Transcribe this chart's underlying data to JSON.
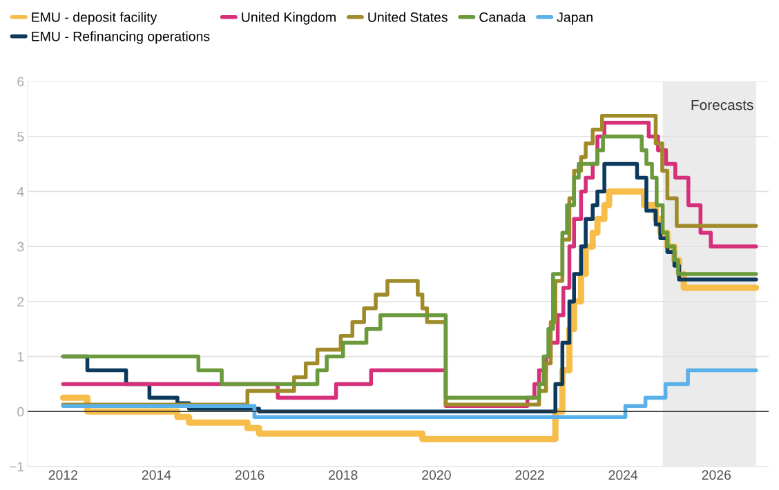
{
  "chart_data": {
    "type": "step",
    "xlim": [
      2011.24,
      2027.12
    ],
    "xticks": [
      2012,
      2014,
      2016,
      2018,
      2020,
      2022,
      2024,
      2026
    ],
    "ylim": [
      -1,
      6
    ],
    "yticks": [
      {
        "value": -1,
        "label": "−1"
      },
      0,
      1,
      2,
      3,
      4,
      5,
      6
    ],
    "grid": "y",
    "legend": "top",
    "line_style": "solid",
    "marker": "none",
    "ref_lines": [
      {
        "axis": "y",
        "value": 0,
        "color": "#333333"
      }
    ],
    "bands": [
      {
        "axis": "x",
        "from": 2024.85,
        "to": 2026.85,
        "label": "Forecasts",
        "color": "#ebebeb"
      }
    ],
    "series": [
      {
        "name": "EMU - deposit facility",
        "color": "#f6bd4a",
        "x": [
          2012.0,
          2012.52,
          2014.45,
          2014.7,
          2015.95,
          2016.2,
          2019.7,
          2022.55,
          2022.7,
          2022.85,
          2022.95,
          2023.1,
          2023.2,
          2023.35,
          2023.45,
          2023.6,
          2023.7,
          2024.45,
          2024.7,
          2024.8,
          2024.95,
          2025.1,
          2025.2,
          2025.3,
          2026.85
        ],
        "values": [
          0.25,
          0,
          -0.1,
          -0.2,
          -0.3,
          -0.4,
          -0.5,
          0,
          0.75,
          1.5,
          2.0,
          2.5,
          3.0,
          3.25,
          3.5,
          3.75,
          4.0,
          3.75,
          3.5,
          3.25,
          3.0,
          2.75,
          2.5,
          2.25,
          2.25
        ]
      },
      {
        "name": "EMU - Refinancing operations",
        "color": "#0d3a5c",
        "x": [
          2012.0,
          2012.52,
          2013.35,
          2013.85,
          2014.45,
          2014.7,
          2016.2,
          2022.55,
          2022.7,
          2022.85,
          2022.95,
          2023.1,
          2023.2,
          2023.35,
          2023.45,
          2023.6,
          2024.3,
          2024.5,
          2024.7,
          2024.8,
          2024.95,
          2025.1,
          2025.2,
          2026.85
        ],
        "values": [
          1.0,
          0.75,
          0.5,
          0.25,
          0.15,
          0.05,
          0,
          0.5,
          1.25,
          2.0,
          2.5,
          3.0,
          3.5,
          3.75,
          4.0,
          4.5,
          4.25,
          3.65,
          3.4,
          3.15,
          2.9,
          2.65,
          2.4,
          2.4
        ]
      },
      {
        "name": "United Kingdom",
        "color": "#d6307a",
        "x": [
          2012.0,
          2016.6,
          2017.85,
          2018.6,
          2020.2,
          2021.95,
          2022.1,
          2022.2,
          2022.35,
          2022.45,
          2022.6,
          2022.72,
          2022.85,
          2022.95,
          2023.1,
          2023.2,
          2023.35,
          2023.45,
          2023.6,
          2024.55,
          2024.75,
          2024.92,
          2025.12,
          2025.4,
          2025.66,
          2025.88,
          2026.85
        ],
        "values": [
          0.5,
          0.25,
          0.5,
          0.75,
          0.1,
          0.25,
          0.5,
          0.75,
          1.0,
          1.25,
          1.75,
          2.25,
          3.0,
          3.5,
          4.0,
          4.25,
          4.5,
          5.0,
          5.25,
          5.0,
          4.75,
          4.5,
          4.25,
          3.75,
          3.25,
          3.0,
          3.0
        ]
      },
      {
        "name": "United States",
        "color": "#a08b2b",
        "x": [
          2012.0,
          2015.95,
          2016.95,
          2017.2,
          2017.45,
          2017.95,
          2018.2,
          2018.45,
          2018.7,
          2018.95,
          2019.6,
          2019.7,
          2019.8,
          2020.2,
          2022.2,
          2022.35,
          2022.45,
          2022.55,
          2022.7,
          2022.85,
          2022.95,
          2023.1,
          2023.2,
          2023.35,
          2023.55,
          2024.7,
          2024.84,
          2024.95,
          2025.15,
          2026.85
        ],
        "values": [
          0.125,
          0.375,
          0.625,
          0.875,
          1.125,
          1.375,
          1.625,
          1.875,
          2.125,
          2.375,
          2.125,
          1.875,
          1.625,
          0.125,
          0.375,
          0.875,
          1.625,
          2.375,
          3.125,
          3.875,
          4.375,
          4.625,
          4.875,
          5.125,
          5.375,
          4.875,
          4.375,
          3.875,
          3.375,
          3.375
        ]
      },
      {
        "name": "Canada",
        "color": "#6a9a3b",
        "x": [
          2012.0,
          2014.9,
          2015.4,
          2017.45,
          2017.65,
          2018.0,
          2018.5,
          2018.8,
          2020.2,
          2022.2,
          2022.3,
          2022.4,
          2022.5,
          2022.7,
          2022.8,
          2022.95,
          2023.05,
          2023.45,
          2023.57,
          2024.4,
          2024.5,
          2024.62,
          2024.72,
          2024.85,
          2024.95,
          2025.1,
          2025.18,
          2026.85
        ],
        "values": [
          1.0,
          0.75,
          0.5,
          0.75,
          1.0,
          1.25,
          1.5,
          1.75,
          0.25,
          0.5,
          1.0,
          1.5,
          2.5,
          3.25,
          3.75,
          4.25,
          4.5,
          4.75,
          5.0,
          4.75,
          4.5,
          4.25,
          3.75,
          3.25,
          3.0,
          2.75,
          2.5,
          2.5
        ]
      },
      {
        "name": "Japan",
        "color": "#5ab0e8",
        "x": [
          2012.0,
          2016.1,
          2024.05,
          2024.48,
          2024.91,
          2025.39,
          2026.85
        ],
        "values": [
          0.1,
          -0.1,
          0.1,
          0.25,
          0.5,
          0.75,
          0.75
        ]
      }
    ]
  }
}
